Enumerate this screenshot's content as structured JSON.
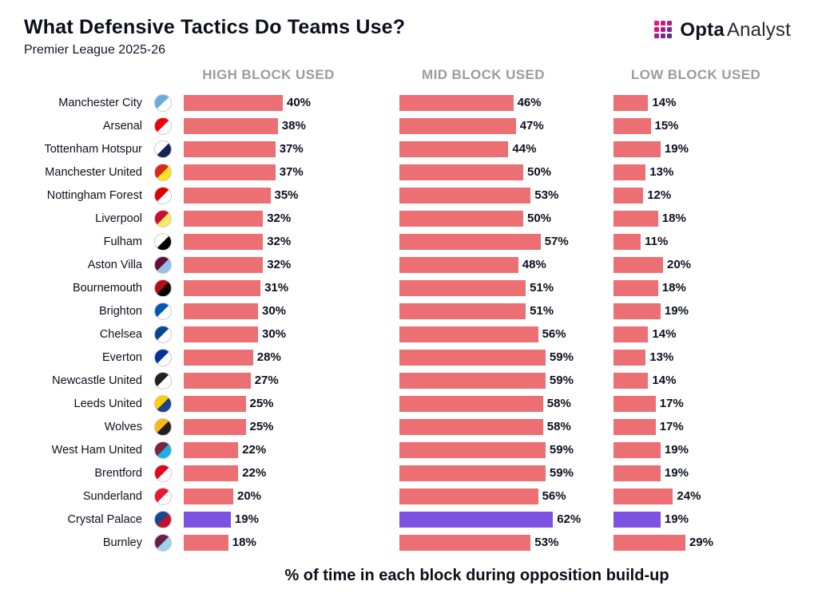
{
  "header": {
    "title": "What Defensive Tactics Do Teams Use?",
    "subtitle": "Premier League 2025-26"
  },
  "brand": {
    "opta": "Opta",
    "analyst": "Analyst"
  },
  "columns": [
    "HIGH BLOCK USED",
    "MID BLOCK USED",
    "LOW BLOCK USED"
  ],
  "footer_caption": "% of time in each block during opposition build-up",
  "colors": {
    "bar": "#EC6F73",
    "highlight": "#7C52E0",
    "title": "#0D0D1B",
    "column_header": "#9B9BA2",
    "label": "#0E0E1E",
    "brand_gradient": [
      "#F3117E",
      "#D31583",
      "#A91D8C",
      "#D31583",
      "#A91D8C",
      "#7F2595",
      "#A91D8C",
      "#7F2595",
      "#5A2C9E"
    ]
  },
  "chart_data": {
    "type": "bar",
    "orientation": "horizontal",
    "title": "What Defensive Tactics Do Teams Use?",
    "subtitle": "Premier League 2025-26",
    "note": "% of time in each block during opposition build-up",
    "value_suffix": "%",
    "xlim": [
      0,
      65
    ],
    "grid": false,
    "legend_position": "column-headers-top",
    "categories": [
      "Manchester City",
      "Arsenal",
      "Tottenham Hotspur",
      "Manchester United",
      "Nottingham Forest",
      "Liverpool",
      "Fulham",
      "Aston Villa",
      "Bournemouth",
      "Brighton",
      "Chelsea",
      "Everton",
      "Newcastle United",
      "Leeds United",
      "Wolves",
      "West Ham United",
      "Brentford",
      "Sunderland",
      "Crystal Palace",
      "Burnley"
    ],
    "series": [
      {
        "name": "High Block Used",
        "values": [
          40,
          38,
          37,
          37,
          35,
          32,
          32,
          32,
          31,
          30,
          30,
          28,
          27,
          25,
          25,
          22,
          22,
          20,
          19,
          18
        ]
      },
      {
        "name": "Mid Block Used",
        "values": [
          46,
          47,
          44,
          50,
          53,
          50,
          57,
          48,
          51,
          51,
          56,
          59,
          59,
          58,
          58,
          59,
          59,
          56,
          62,
          53
        ]
      },
      {
        "name": "Low Block Used",
        "values": [
          14,
          15,
          19,
          13,
          12,
          18,
          11,
          20,
          18,
          19,
          14,
          13,
          14,
          17,
          17,
          19,
          19,
          24,
          19,
          29
        ]
      }
    ],
    "highlight_category": "Crystal Palace",
    "highlight_index": 18
  },
  "crests": [
    {
      "team": "Manchester City",
      "colors": [
        "#6CABDD",
        "#FFFFFF"
      ]
    },
    {
      "team": "Arsenal",
      "colors": [
        "#EF0107",
        "#FFFFFF"
      ]
    },
    {
      "team": "Tottenham Hotspur",
      "colors": [
        "#FFFFFF",
        "#132257"
      ]
    },
    {
      "team": "Manchester United",
      "colors": [
        "#DA291C",
        "#FBE122"
      ]
    },
    {
      "team": "Nottingham Forest",
      "colors": [
        "#DD0000",
        "#FFFFFF"
      ]
    },
    {
      "team": "Liverpool",
      "colors": [
        "#C8102E",
        "#F6EB61"
      ]
    },
    {
      "team": "Fulham",
      "colors": [
        "#FFFFFF",
        "#000000"
      ]
    },
    {
      "team": "Aston Villa",
      "colors": [
        "#670E36",
        "#95BFE5"
      ]
    },
    {
      "team": "Bournemouth",
      "colors": [
        "#B50E12",
        "#000000"
      ]
    },
    {
      "team": "Brighton",
      "colors": [
        "#0057B8",
        "#FFFFFF"
      ]
    },
    {
      "team": "Chelsea",
      "colors": [
        "#034694",
        "#FFFFFF"
      ]
    },
    {
      "team": "Everton",
      "colors": [
        "#003399",
        "#FFFFFF"
      ]
    },
    {
      "team": "Newcastle United",
      "colors": [
        "#241F20",
        "#FFFFFF"
      ]
    },
    {
      "team": "Leeds United",
      "colors": [
        "#FFCD00",
        "#1D428A"
      ]
    },
    {
      "team": "Wolves",
      "colors": [
        "#FDB913",
        "#231F20"
      ]
    },
    {
      "team": "West Ham United",
      "colors": [
        "#7A263A",
        "#1BB1E7"
      ]
    },
    {
      "team": "Brentford",
      "colors": [
        "#E30613",
        "#FFFFFF"
      ]
    },
    {
      "team": "Sunderland",
      "colors": [
        "#EB172B",
        "#FFFFFF"
      ]
    },
    {
      "team": "Crystal Palace",
      "colors": [
        "#1B458F",
        "#C4122E"
      ]
    },
    {
      "team": "Burnley",
      "colors": [
        "#6C1D45",
        "#99D6EA"
      ]
    }
  ]
}
